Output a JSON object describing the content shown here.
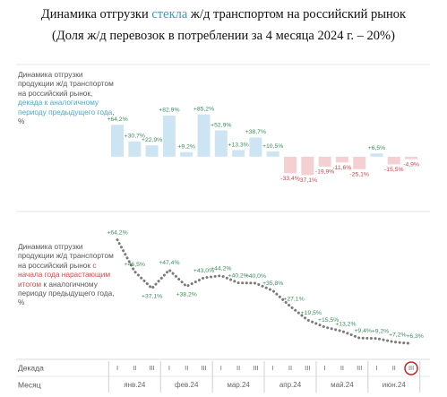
{
  "header": {
    "title_parts": [
      "Динамика отгрузки ",
      "стекла",
      " ж/д транспортом на российский рынок"
    ],
    "title_accent_color": "#2f9fb8",
    "subtitle": "(Доля ж/д перевозок в потреблении за 4 месяца 2024 г. – 20%)"
  },
  "chart_data": [
    {
      "type": "bar",
      "description_parts": [
        {
          "text": "Динамика отгрузки продукции ж/д транспортом на российский рынок, ",
          "color": "#555555"
        },
        {
          "text": "декада к аналогичному периоду предыдущего года",
          "color": "#4aa8c8"
        },
        {
          "text": ", %",
          "color": "#555555"
        }
      ],
      "values": [
        64.2,
        30.7,
        22.9,
        82.9,
        9.2,
        85.2,
        52.9,
        13.3,
        38.7,
        10.5,
        -33.4,
        -37.1,
        -19.9,
        -11.6,
        -25.1,
        6.5,
        -15.5,
        -4.9
      ],
      "value_labels": [
        "+64,2%",
        "+30,7%",
        "+22,9%",
        "+82,9%",
        "+9,2%",
        "+85,2%",
        "+52,9%",
        "+13,3%",
        "+38,7%",
        "+10,5%",
        "-33,4%",
        "-37,1%",
        "-19,9%",
        "-11,6%",
        "-25,1%",
        "+6,5%",
        "-15,5%",
        "-4,9%"
      ],
      "ylim": [
        -40,
        90
      ],
      "positive_color": "#cde5f2",
      "negative_color": "#f5d0d3",
      "positive_label_color": "#3d8c5c",
      "negative_label_color": "#c8454b"
    },
    {
      "type": "line",
      "description_parts": [
        {
          "text": "Динамика отгрузки продукции ж/д транспортом на российский рынок ",
          "color": "#555555"
        },
        {
          "text": "с начала года нарастающим итогом",
          "color": "#d04a4a"
        },
        {
          "text": " к аналогичному периоду предыдущего года, %",
          "color": "#555555"
        }
      ],
      "categories": [
        "I",
        "II",
        "III",
        "I",
        "II",
        "III",
        "I",
        "II",
        "III",
        "I",
        "II",
        "III",
        "I",
        "II",
        "III",
        "I",
        "II",
        "III"
      ],
      "values": [
        64.2,
        46.5,
        37.1,
        47.4,
        38.2,
        43.0,
        44.2,
        40.2,
        40.0,
        35.8,
        27.1,
        19.5,
        15.5,
        13.2,
        9.4,
        9.2,
        7.2,
        6.3
      ],
      "value_labels": [
        "+64,2%",
        "+46,5%",
        "+37,1%",
        "+47,4%",
        "+38,2%",
        "+43,0%",
        "+44,2%",
        "+40,2%",
        "+40,0%",
        "+35,8%",
        "+27,1%",
        "+19,5%",
        "+15,5%",
        "+13,2%",
        "+9,4%",
        "+9,2%",
        "+7,2%",
        "+6,3%"
      ],
      "ylim": [
        0,
        70
      ],
      "color": "#7a7a7a",
      "label_color": "#3d8c5c"
    }
  ],
  "x_axis": {
    "decade_row_label": "Декада",
    "month_row_label": "Месяц",
    "months": [
      "янв.24",
      "фев.24",
      "мар.24",
      "апр.24",
      "май.24",
      "июн.24"
    ]
  }
}
